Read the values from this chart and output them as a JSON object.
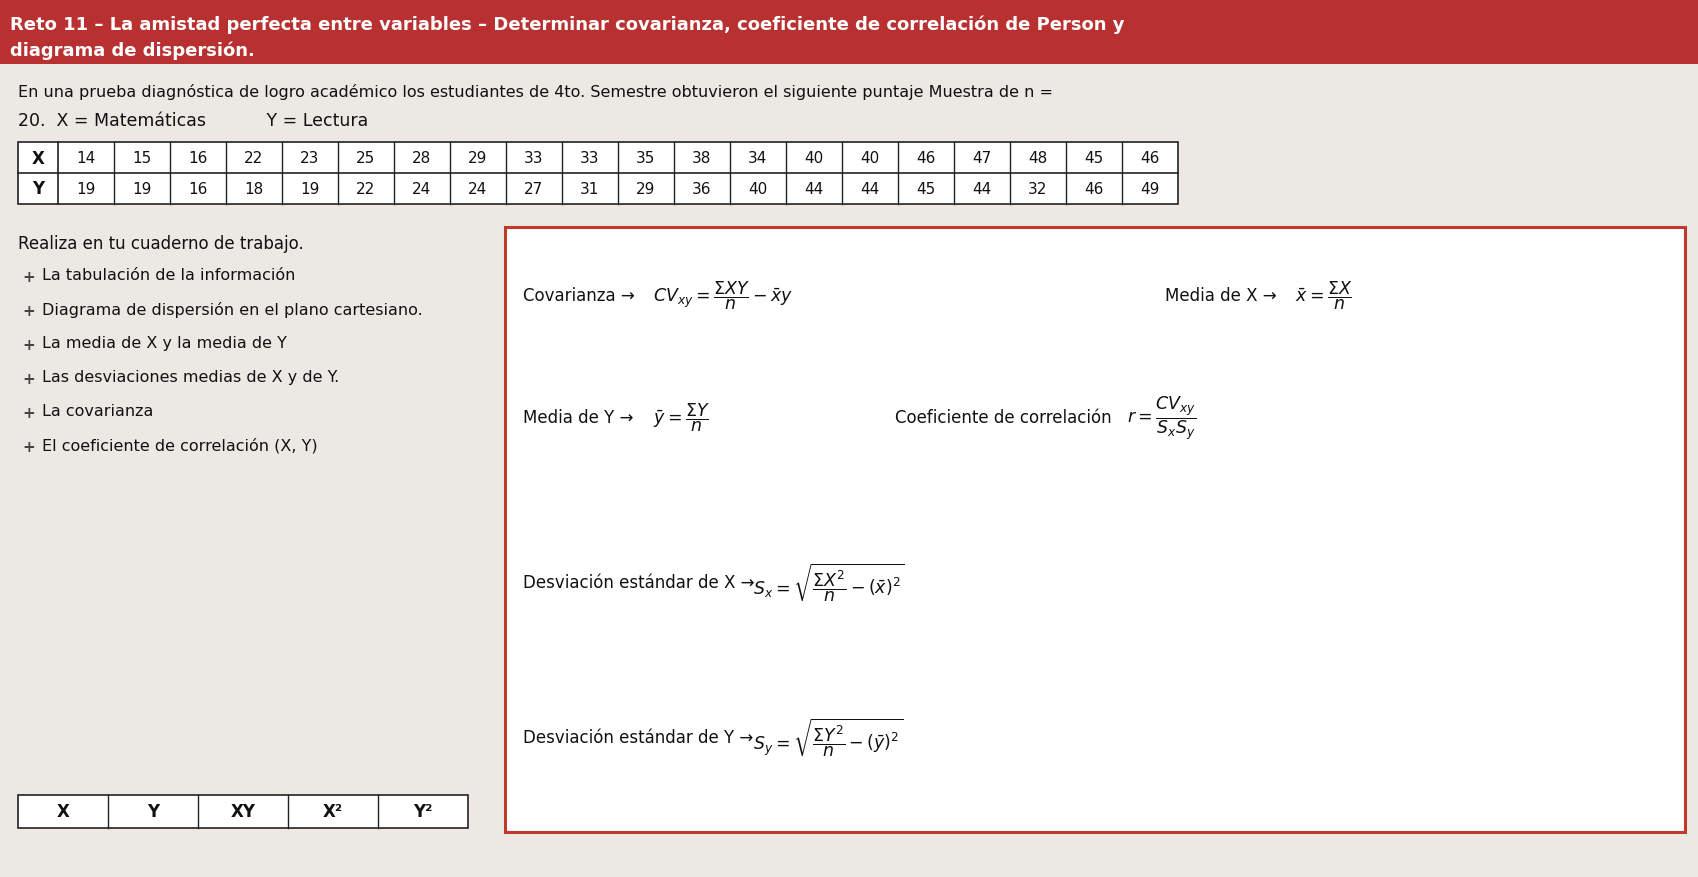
{
  "title_line1": "Reto 11 – La amistad perfecta entre variables – Determinar covarianza, coeficiente de correlación de Person y",
  "title_line2": "diagrama de dispersión.",
  "title_bg": "#b83030",
  "title_fg": "#ffffff",
  "intro_text": "En una prueba diagnóstica de logro académico los estudiantes de 4to. Semestre obtuvieron el siguiente puntaje Muestra de n =",
  "sample_text": "20.  X = Matemáticas           Y = Lectura",
  "X_values": [
    14,
    15,
    16,
    22,
    23,
    25,
    28,
    29,
    33,
    33,
    35,
    38,
    34,
    40,
    40,
    46,
    47,
    48,
    45,
    46
  ],
  "Y_values": [
    19,
    19,
    16,
    18,
    19,
    22,
    24,
    24,
    27,
    31,
    29,
    36,
    40,
    44,
    44,
    45,
    44,
    32,
    46,
    49
  ],
  "left_items": [
    "La tabulación de la información",
    "Diagrama de dispersión en el plano cartesiano.",
    "La media de X y la media de Y",
    "Las desviaciones medias de X y de Y.",
    "La covarianza",
    "El coeficiente de correlación (X, Y)"
  ],
  "bottom_table_headers": [
    "X",
    "Y",
    "XY",
    "X²",
    "Y²"
  ],
  "realiza_text": "Realiza en tu cuaderno de trabajo.",
  "bg_color": "#ece9e4",
  "table_border": "#222222",
  "formula_box_border": "#c0392b",
  "text_color": "#111111",
  "formula_prefix_cov": "Covarianza → ",
  "formula_prefix_medx": "Media de X → ",
  "formula_prefix_medy": "Media de Y → ",
  "formula_prefix_coef": "Coeficiente de correlación ",
  "formula_prefix_desx": "Desviación estándar de X → ",
  "formula_prefix_desy": "Desviación estándar de Y → "
}
